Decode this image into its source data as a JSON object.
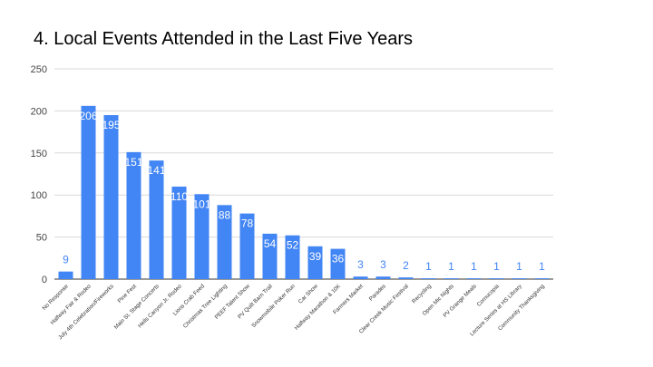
{
  "slide": {
    "title": "4. Local Events Attended in the Last Five Years"
  },
  "chart_data": {
    "type": "bar",
    "title": "",
    "xlabel": "",
    "ylabel": "",
    "ylim": [
      0,
      250
    ],
    "yticks": [
      0,
      50,
      100,
      150,
      200,
      250
    ],
    "grid": true,
    "legend": "none",
    "bar_color": "#4285f4",
    "label_color_outside": "#4285f4",
    "label_color_inside": "#ffffff",
    "categories": [
      "No Response",
      "Halfway Fair & Rodeo",
      "July 4th Celebration/Fireworks",
      "Pine Fest",
      "Main St. Stage Concerts",
      "Hells Canyon Jr. Rodeo",
      "Lions Crab Feed",
      "Christmas Tree Lighting",
      "PEEF Talent Show",
      "PV Quilt Barn Trail",
      "Snowmobile Poker Run",
      "Car Show",
      "Halfway Marathon & 10K",
      "Farmers Market",
      "Parades",
      "Clear Creek Music Festival",
      "Recycling",
      "Open Mic Nights",
      "PV Grange Meals",
      "Cornucopia",
      "Lecture Series at HS Library",
      "Community Thanksgiving"
    ],
    "values": [
      9,
      206,
      195,
      151,
      141,
      110,
      101,
      88,
      78,
      54,
      52,
      39,
      36,
      3,
      3,
      2,
      1,
      1,
      1,
      1,
      1,
      1
    ]
  }
}
